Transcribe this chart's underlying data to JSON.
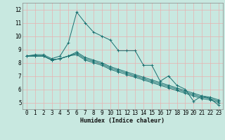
{
  "title": "",
  "xlabel": "Humidex (Indice chaleur)",
  "ylabel": "",
  "background_color": "#c8e8e0",
  "grid_color": "#e8b0b0",
  "line_color": "#1a7070",
  "xlim": [
    -0.5,
    23.5
  ],
  "ylim": [
    4.5,
    12.5
  ],
  "x_ticks": [
    0,
    1,
    2,
    3,
    4,
    5,
    6,
    7,
    8,
    9,
    10,
    11,
    12,
    13,
    14,
    15,
    16,
    17,
    18,
    19,
    20,
    21,
    22,
    23
  ],
  "y_ticks": [
    5,
    6,
    7,
    8,
    9,
    10,
    11,
    12
  ],
  "series": [
    [
      8.5,
      8.6,
      8.6,
      8.3,
      8.5,
      9.5,
      11.8,
      11.0,
      10.3,
      10.0,
      9.7,
      8.9,
      8.9,
      8.9,
      7.8,
      7.8,
      6.6,
      7.0,
      6.3,
      6.0,
      5.1,
      5.5,
      5.3,
      4.8
    ],
    [
      8.5,
      8.5,
      8.5,
      8.2,
      8.3,
      8.5,
      8.6,
      8.2,
      8.0,
      7.8,
      7.5,
      7.3,
      7.1,
      6.9,
      6.7,
      6.5,
      6.3,
      6.1,
      5.9,
      5.7,
      5.5,
      5.3,
      5.2,
      5.0
    ],
    [
      8.5,
      8.5,
      8.5,
      8.2,
      8.3,
      8.5,
      8.7,
      8.3,
      8.1,
      7.9,
      7.6,
      7.4,
      7.2,
      7.0,
      6.8,
      6.6,
      6.4,
      6.2,
      6.0,
      5.8,
      5.6,
      5.4,
      5.3,
      5.1
    ],
    [
      8.5,
      8.5,
      8.5,
      8.2,
      8.3,
      8.5,
      8.8,
      8.4,
      8.2,
      8.0,
      7.7,
      7.5,
      7.3,
      7.1,
      6.9,
      6.7,
      6.5,
      6.3,
      6.1,
      5.9,
      5.7,
      5.5,
      5.4,
      5.2
    ]
  ],
  "xlabel_fontsize": 6,
  "tick_fontsize": 5.5
}
